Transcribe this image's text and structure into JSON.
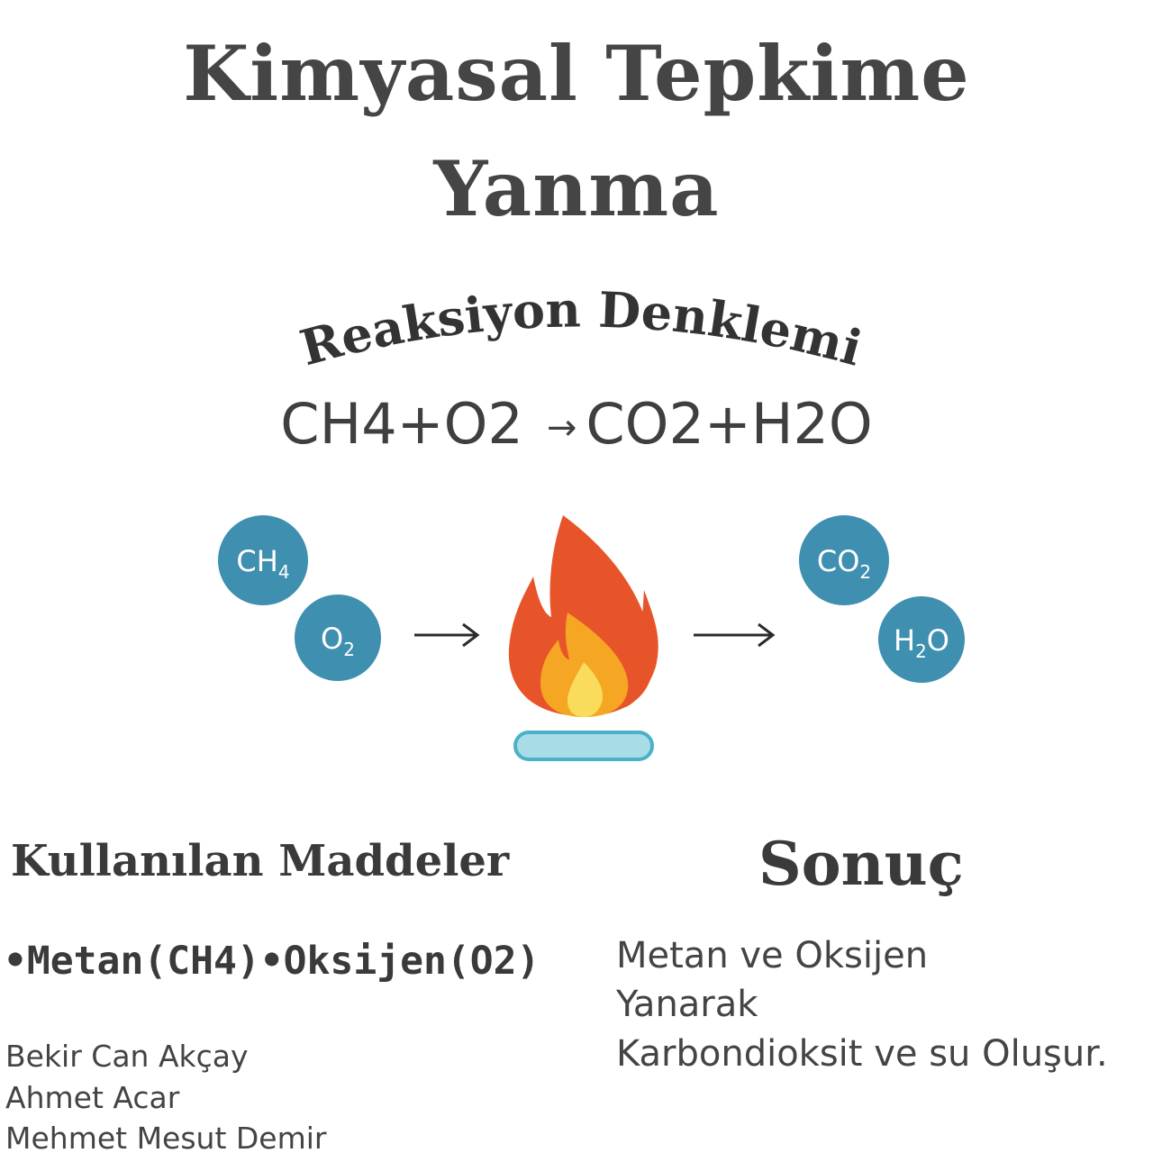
{
  "title": {
    "line1": "Kimyasal Tepkime",
    "line2": "Yanma"
  },
  "equation_heading": "Reaksiyon Denklemi",
  "equation": {
    "reactants": "CH4+O2",
    "arrow": "→",
    "products": "CO2+H2O"
  },
  "diagram": {
    "reactants": [
      {
        "base": "CH",
        "sub": "4"
      },
      {
        "base": "O",
        "sub": "2"
      }
    ],
    "products": [
      {
        "base": "CO",
        "sub": "2"
      },
      {
        "pre": "H",
        "sub": "2",
        "post": "O"
      }
    ],
    "icons": [
      "flame-icon",
      "burner-icon",
      "arrow-right-icon"
    ],
    "colors": {
      "molecule": "#3e8fb0",
      "flame_outer": "#e8542a",
      "flame_mid": "#f5a623",
      "flame_inner": "#f9dc5c",
      "burner": "#a8dde8",
      "burner_outline": "#4ab1c9"
    }
  },
  "materials": {
    "heading": "Kullanılan Maddeler",
    "items": "•Metan(CH4)•Oksijen(O2)"
  },
  "authors": [
    "Bekir Can Akçay",
    "Ahmet Acar",
    "Mehmet Mesut Demir"
  ],
  "result": {
    "heading": "Sonuç",
    "lines": [
      "Metan ve Oksijen",
      "Yanarak",
      "Karbondioksit ve su Oluşur."
    ]
  }
}
